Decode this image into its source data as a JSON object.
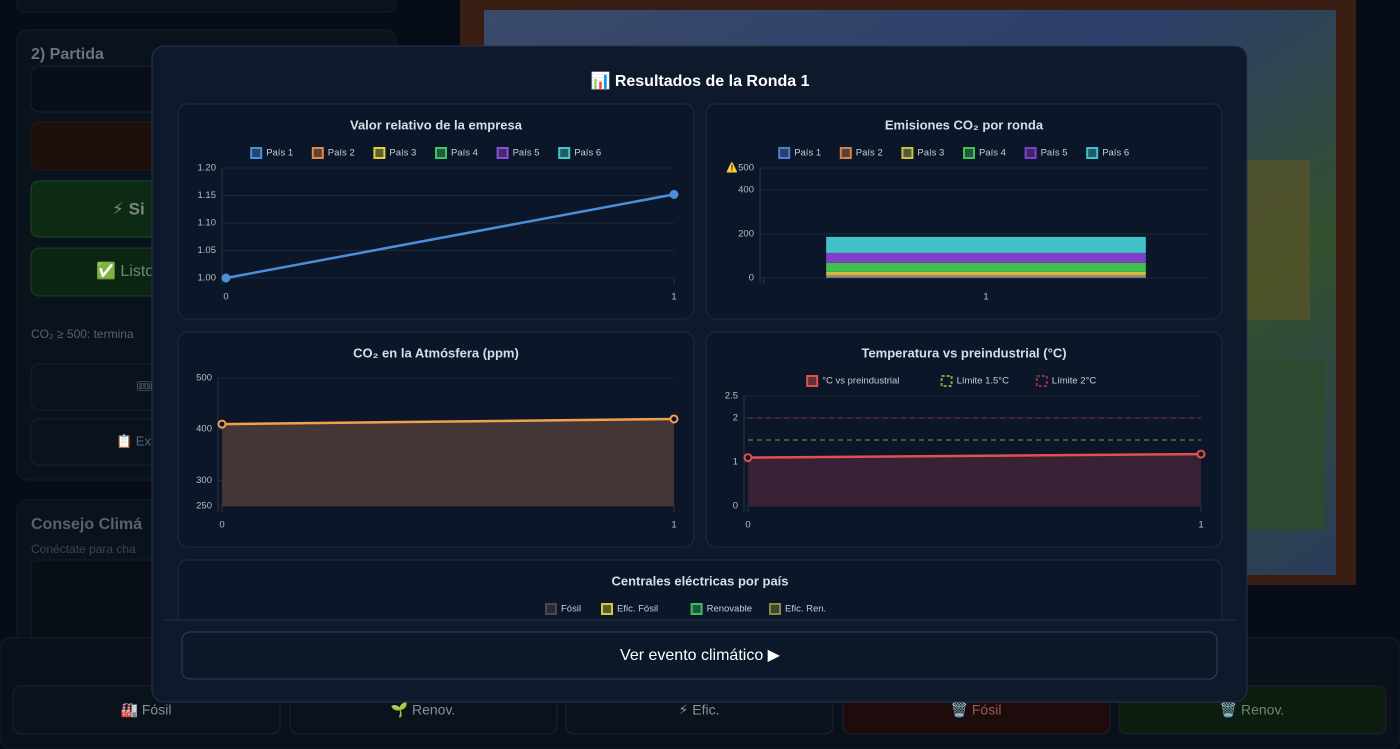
{
  "background": {
    "section_title": "2) Partida",
    "buttons": [
      "⚡ Si",
      "✅ Listo"
    ],
    "note": "CO₂ ≥ 500: termina",
    "panel_buttons": [
      "🎟",
      "📋 Ex"
    ],
    "council_title": "Consejo Climá",
    "council_hint": "Conéctate para cha"
  },
  "bottom_bar": [
    "🏭 Fósil",
    "🌱 Renov.",
    "⚡ Efic.",
    "🗑️ Fósil",
    "🗑️ Renov."
  ],
  "modal": {
    "title": "📊 Resultados de la Ronda 1",
    "button": "Ver evento climático ▶"
  },
  "chart_data": [
    {
      "type": "line",
      "title": "Valor relativo de la empresa",
      "legend": true,
      "x": [
        0,
        1
      ],
      "xlim": [
        0,
        1
      ],
      "xticks": [
        0,
        1
      ],
      "ylim": [
        1,
        1.2
      ],
      "yticks": [
        {
          "value": 1,
          "label": "1.00"
        },
        1.05,
        {
          "value": 1.1,
          "label": "1.10"
        },
        1.15,
        {
          "value": 1.2,
          "label": "1.20"
        }
      ],
      "grid": true,
      "series": [
        {
          "name": "País 1",
          "color": "#4a8fd8",
          "values": [
            1.0,
            1.152
          ]
        },
        {
          "name": "País 2",
          "color": "#e0894a",
          "values": [
            null,
            null
          ]
        },
        {
          "name": "País 3",
          "color": "#ddd040",
          "values": [
            null,
            null
          ]
        },
        {
          "name": "País 4",
          "color": "#3fc45c",
          "values": [
            null,
            null
          ]
        },
        {
          "name": "País 5",
          "color": "#8e4fd6",
          "values": [
            null,
            null
          ]
        },
        {
          "name": "País 6",
          "color": "#3fc8c8",
          "values": [
            null,
            null
          ]
        }
      ]
    },
    {
      "type": "bar",
      "stacked": true,
      "title": "Emisiones CO₂ por ronda",
      "legend": true,
      "categories": [
        "1"
      ],
      "ylim": [
        0,
        500
      ],
      "yticks": [
        0,
        200,
        400,
        {
          "value": 500,
          "label": "⚠️500"
        }
      ],
      "grid": true,
      "series": [
        {
          "name": "País 1",
          "color": "#4a80d0",
          "values": [
            5
          ]
        },
        {
          "name": "País 2",
          "color": "#d4804c",
          "values": [
            9
          ]
        },
        {
          "name": "País 3",
          "color": "#c8c040",
          "values": [
            14
          ]
        },
        {
          "name": "País 4",
          "color": "#40c050",
          "values": [
            41
          ]
        },
        {
          "name": "País 5",
          "color": "#8040c8",
          "values": [
            45
          ]
        },
        {
          "name": "País 6",
          "color": "#40c2c8",
          "values": [
            73
          ]
        }
      ]
    },
    {
      "type": "line",
      "title": "CO₂ en la Atmósfera (ppm)",
      "legend": false,
      "x": [
        0,
        1
      ],
      "xlim": [
        0,
        1
      ],
      "xticks": [
        0,
        1
      ],
      "ylim": [
        250,
        500
      ],
      "yticks": [
        250,
        300,
        400,
        500
      ],
      "grid": true,
      "series": [
        {
          "color": "#f0a050",
          "fill": "#4a3a36",
          "values": [
            410,
            420
          ]
        }
      ]
    },
    {
      "type": "line",
      "title": "Temperatura vs preindustrial (°C)",
      "legend": true,
      "x": [
        0,
        1
      ],
      "xlim": [
        0,
        1
      ],
      "xticks": [
        0,
        1
      ],
      "ylim": [
        0,
        2.5
      ],
      "yticks": [
        0,
        1,
        2,
        2.5
      ],
      "grid": true,
      "series": [
        {
          "name": "°C vs preindustrial",
          "color": "#e05050",
          "fill": "#3e2236",
          "values": [
            1.1,
            1.18
          ]
        },
        {
          "name": "Límite 1.5°C",
          "color": "#8a9a40",
          "dash": true,
          "values": [
            1.5,
            1.5
          ]
        },
        {
          "name": "Límite 2°C",
          "color": "#8a3438",
          "dash": true,
          "values": [
            2,
            2
          ]
        }
      ]
    },
    {
      "type": "bar",
      "title": "Centrales eléctricas por país",
      "legend": true,
      "series": [
        {
          "name": "Fósil",
          "color": "#4a4a4a"
        },
        {
          "name": "Efic. Fósil",
          "color": "#d4c840"
        },
        {
          "name": "Renovable",
          "color": "#3cc060"
        },
        {
          "name": "Efic. Ren.",
          "color": "#8a8a3a"
        }
      ]
    }
  ]
}
